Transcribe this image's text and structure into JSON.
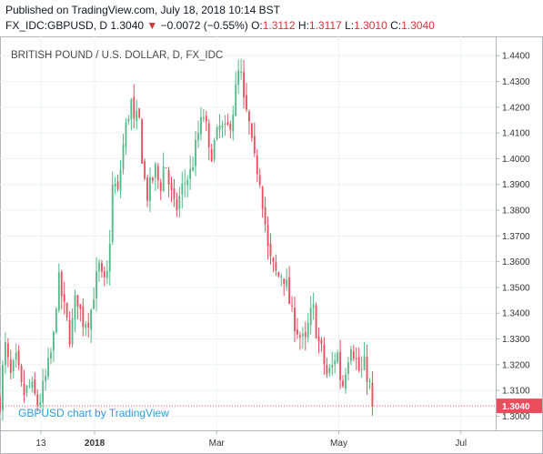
{
  "header": {
    "published": "Published on TradingView.com, July 18, 2018 10:14 BST",
    "symbol": "FX_IDC:GBPUSD, D",
    "last": "1.3040",
    "arrow": "▼",
    "change": "−0.0072 (−0.55%)",
    "open_label": "O:",
    "open": "1.3112",
    "high_label": "H:",
    "high": "1.3117",
    "low_label": "L:",
    "low": "1.3010",
    "close_label": "C:",
    "close": "1.3040"
  },
  "chart_data": {
    "type": "candlestick",
    "title": "BRITISH POUND / U.S. DOLLAR, D, FX_IDC",
    "credit": "GBPUSD chart by TradingView",
    "ylim": [
      1.2945,
      1.4475
    ],
    "yticks": [
      "1.4400",
      "1.4300",
      "1.4200",
      "1.4100",
      "1.4000",
      "1.3900",
      "1.3800",
      "1.3700",
      "1.3600",
      "1.3500",
      "1.3400",
      "1.3300",
      "1.3200",
      "1.3100",
      "1.3000"
    ],
    "xticks": [
      {
        "label": "13",
        "month": 0.12,
        "bold": false
      },
      {
        "label": "2018",
        "month": 1.0,
        "bold": true
      },
      {
        "label": "Mar",
        "month": 3.0,
        "bold": false
      },
      {
        "label": "May",
        "month": 5.0,
        "bold": false
      },
      {
        "label": "Jul",
        "month": 7.0,
        "bold": false
      }
    ],
    "x_range_months": [
      -0.55,
      7.57
    ],
    "last_price": 1.304,
    "last_price_label": "1.3040",
    "up_color": "#53b987",
    "down_color": "#eb4d5c",
    "close_path": [
      [
        -0.55,
        1.306
      ],
      [
        -0.47,
        1.328
      ],
      [
        -0.38,
        1.315
      ],
      [
        -0.28,
        1.322
      ],
      [
        -0.18,
        1.308
      ],
      [
        -0.05,
        1.312
      ],
      [
        0.08,
        1.304
      ],
      [
        0.2,
        1.315
      ],
      [
        0.32,
        1.328
      ],
      [
        0.4,
        1.354
      ],
      [
        0.5,
        1.342
      ],
      [
        0.6,
        1.33
      ],
      [
        0.7,
        1.348
      ],
      [
        0.8,
        1.337
      ],
      [
        0.92,
        1.338
      ],
      [
        1.0,
        1.35
      ],
      [
        1.07,
        1.358
      ],
      [
        1.15,
        1.35
      ],
      [
        1.22,
        1.356
      ],
      [
        1.3,
        1.392
      ],
      [
        1.38,
        1.386
      ],
      [
        1.45,
        1.402
      ],
      [
        1.53,
        1.415
      ],
      [
        1.6,
        1.422
      ],
      [
        1.65,
        1.412
      ],
      [
        1.72,
        1.418
      ],
      [
        1.78,
        1.4
      ],
      [
        1.85,
        1.385
      ],
      [
        1.92,
        1.39
      ],
      [
        2.0,
        1.396
      ],
      [
        2.07,
        1.388
      ],
      [
        2.15,
        1.4
      ],
      [
        2.22,
        1.39
      ],
      [
        2.32,
        1.379
      ],
      [
        2.45,
        1.39
      ],
      [
        2.58,
        1.395
      ],
      [
        2.7,
        1.41
      ],
      [
        2.8,
        1.418
      ],
      [
        2.88,
        1.4
      ],
      [
        2.95,
        1.405
      ],
      [
        3.05,
        1.412
      ],
      [
        3.15,
        1.41
      ],
      [
        3.25,
        1.416
      ],
      [
        3.32,
        1.428
      ],
      [
        3.38,
        1.436
      ],
      [
        3.45,
        1.42
      ],
      [
        3.52,
        1.415
      ],
      [
        3.6,
        1.4
      ],
      [
        3.7,
        1.394
      ],
      [
        3.78,
        1.378
      ],
      [
        3.85,
        1.362
      ],
      [
        3.92,
        1.358
      ],
      [
        4.0,
        1.354
      ],
      [
        4.08,
        1.356
      ],
      [
        4.15,
        1.35
      ],
      [
        4.22,
        1.34
      ],
      [
        4.3,
        1.335
      ],
      [
        4.38,
        1.33
      ],
      [
        4.45,
        1.328
      ],
      [
        4.52,
        1.338
      ],
      [
        4.58,
        1.342
      ],
      [
        4.65,
        1.33
      ],
      [
        4.72,
        1.325
      ],
      [
        4.8,
        1.316
      ],
      [
        4.88,
        1.318
      ],
      [
        4.97,
        1.326
      ],
      [
        5.05,
        1.31
      ],
      [
        5.12,
        1.32
      ],
      [
        5.2,
        1.329
      ],
      [
        5.28,
        1.322
      ],
      [
        5.35,
        1.316
      ],
      [
        5.42,
        1.32
      ],
      [
        5.5,
        1.313
      ],
      [
        5.55,
        1.304
      ]
    ]
  }
}
